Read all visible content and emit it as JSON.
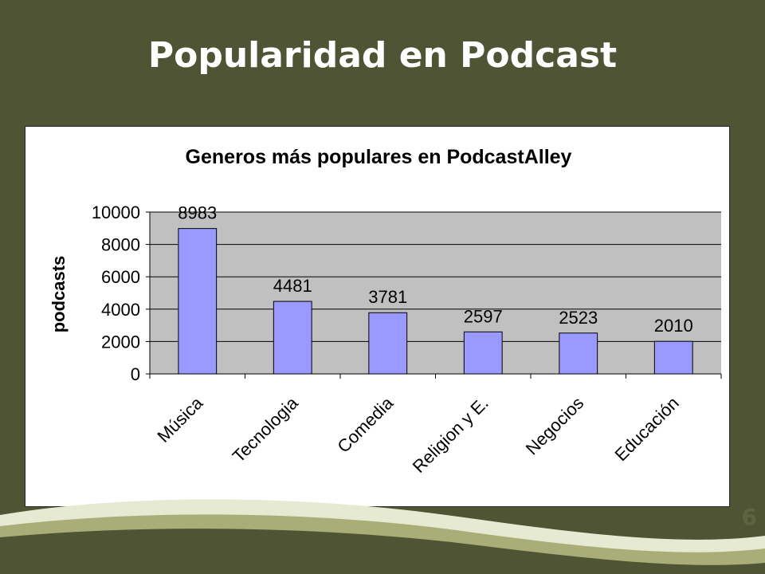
{
  "slide": {
    "title": "Popularidad en Podcast",
    "page_number": "6"
  },
  "colors": {
    "background": "#4f5534",
    "plot_area": "#c0c0c0",
    "bar_fill": "#9999ff",
    "bar_stroke": "#000000",
    "wave_light": "#e7ead2",
    "wave_mid": "#a9ae78"
  },
  "chart_data": {
    "type": "bar",
    "title": "Generos más populares en PodcastAlley",
    "xlabel": "",
    "ylabel": "podcasts",
    "categories": [
      "Música",
      "Tecnologia",
      "Comedia",
      "Religion y E.",
      "Negocios",
      "Educación"
    ],
    "values": [
      8983,
      4481,
      3781,
      2597,
      2523,
      2010
    ],
    "data_labels": [
      "8983",
      "4481",
      "3781",
      "2597",
      "2523",
      "2010"
    ],
    "ylim": [
      0,
      10000
    ],
    "yticks": [
      0,
      2000,
      4000,
      6000,
      8000,
      10000
    ],
    "ytick_labels": [
      "0",
      "2000",
      "4000",
      "6000",
      "8000",
      "10000"
    ],
    "grid": true,
    "legend": "none"
  }
}
